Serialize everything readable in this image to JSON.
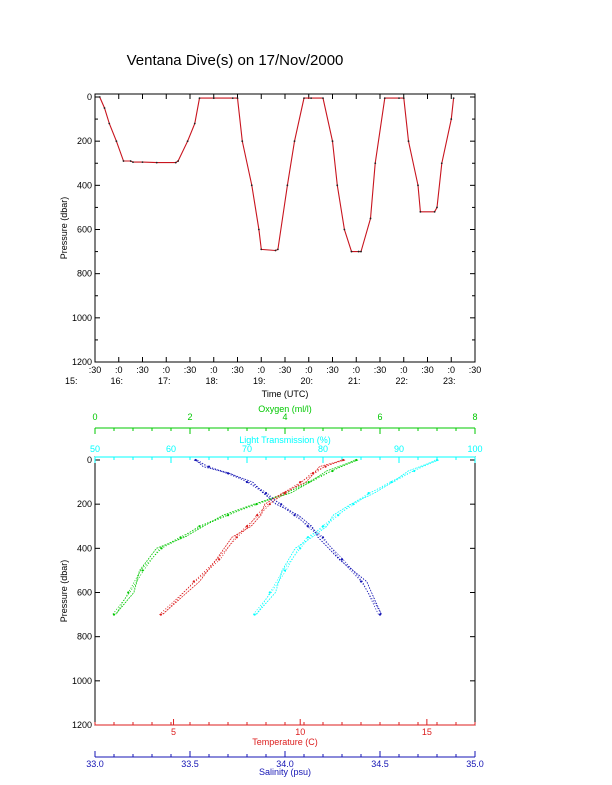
{
  "title": "Ventana Dive(s) on 17/Nov/2000",
  "chart_data": [
    {
      "type": "line",
      "ylabel": "Pressure (dbar)",
      "xlabel": "Time (UTC)",
      "ylim": [
        1200,
        0
      ],
      "yticks": [
        "0",
        "200",
        "400",
        "600",
        "800",
        "1000",
        "1200"
      ],
      "xtick_minutes": [
        ":30",
        ":0",
        ":30",
        ":0",
        ":30",
        ":0",
        ":30",
        ":0",
        ":30",
        ":0",
        ":30",
        ":0",
        ":30",
        ":0",
        ":30",
        ":0",
        ":30"
      ],
      "xtick_hours": [
        "15:",
        "16:",
        "17:",
        "18:",
        "19:",
        "20:",
        "21:",
        "22:",
        "23:"
      ],
      "xlim_hours": [
        15.5,
        23.5
      ],
      "series": [
        {
          "color": "#c8141e",
          "x": [
            15.6,
            15.7,
            15.8,
            15.95,
            16.1,
            16.25,
            16.3,
            16.5,
            16.8,
            17.2,
            17.25,
            17.45,
            17.6,
            17.7,
            18.0,
            18.4,
            18.5,
            18.6,
            18.8,
            18.95,
            19.0,
            19.3,
            19.35,
            19.55,
            19.7,
            19.9,
            20.05,
            20.3,
            20.5,
            20.6,
            20.75,
            20.9,
            21.05,
            21.1,
            21.3,
            21.4,
            21.6,
            21.9,
            22.0,
            22.1,
            22.3,
            22.35,
            22.65,
            22.7,
            22.8,
            23.0,
            23.05
          ],
          "y": [
            0,
            50,
            120,
            200,
            290,
            290,
            295,
            295,
            297,
            297,
            290,
            200,
            120,
            5,
            5,
            5,
            5,
            200,
            400,
            600,
            690,
            695,
            690,
            400,
            200,
            5,
            5,
            5,
            200,
            400,
            600,
            700,
            700,
            700,
            550,
            300,
            5,
            5,
            5,
            200,
            400,
            520,
            520,
            500,
            300,
            100,
            5
          ]
        }
      ]
    },
    {
      "type": "scatter",
      "ylabel": "Pressure (dbar)",
      "ylim": [
        1200,
        0
      ],
      "yticks": [
        "0",
        "200",
        "400",
        "600",
        "800",
        "1000",
        "1200"
      ],
      "axes": [
        {
          "label": "Oxygen (ml/l)",
          "position": "top",
          "color": "#00c800",
          "ticks": [
            "0",
            "2",
            "4",
            "6",
            "8"
          ],
          "range": [
            0,
            8
          ]
        },
        {
          "label": "Light Transmission (%)",
          "position": "top",
          "color": "#00ffff",
          "ticks": [
            "50",
            "60",
            "70",
            "80",
            "90",
            "100"
          ],
          "range": [
            50,
            100
          ]
        },
        {
          "label": "Temperature (C)",
          "position": "bottom",
          "color": "#dc1e1e",
          "ticks": [
            "5",
            "10",
            "15"
          ],
          "range": [
            1.9,
            16.9
          ]
        },
        {
          "label": "Salinity (psu)",
          "position": "bottom",
          "color": "#1414b4",
          "ticks": [
            "33.0",
            "33.5",
            "34.0",
            "34.5",
            "35.0"
          ],
          "range": [
            33.0,
            35.0
          ]
        }
      ],
      "series": [
        {
          "variable": "oxygen",
          "color": "#00c800",
          "x": [
            5.5,
            5.0,
            4.5,
            4.0,
            3.4,
            2.8,
            2.2,
            1.8,
            1.4,
            1.0,
            0.7,
            0.4
          ],
          "y": [
            0,
            50,
            100,
            150,
            200,
            250,
            300,
            350,
            400,
            500,
            600,
            700
          ]
        },
        {
          "variable": "light_transmission",
          "color": "#00ffff",
          "x": [
            95,
            92,
            89,
            86,
            84,
            82,
            80,
            78,
            77,
            75,
            73,
            71
          ],
          "y": [
            0,
            50,
            100,
            150,
            200,
            250,
            300,
            350,
            400,
            500,
            600,
            700
          ]
        },
        {
          "variable": "temperature",
          "color": "#dc1e1e",
          "x": [
            11.7,
            11.0,
            10.5,
            10.0,
            9.4,
            8.8,
            8.3,
            7.9,
            7.5,
            6.8,
            5.8,
            4.5
          ],
          "y": [
            0,
            30,
            60,
            100,
            150,
            200,
            250,
            300,
            350,
            450,
            550,
            700
          ]
        },
        {
          "variable": "salinity",
          "color": "#1414b4",
          "x": [
            33.53,
            33.6,
            33.7,
            33.8,
            33.9,
            33.98,
            34.05,
            34.12,
            34.2,
            34.3,
            34.4,
            34.5
          ],
          "y": [
            0,
            30,
            60,
            100,
            150,
            200,
            250,
            300,
            350,
            450,
            550,
            700
          ]
        }
      ]
    }
  ]
}
